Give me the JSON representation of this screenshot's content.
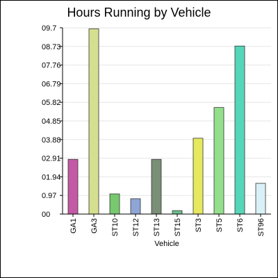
{
  "chart_data": {
    "type": "bar",
    "title": "Hours Running by Vehicle",
    "xlabel": "Vehicle",
    "ylabel": "",
    "categories": [
      "GA1",
      "GA3",
      "ST10",
      "ST12",
      "ST13",
      "ST15",
      "ST3",
      "ST5",
      "ST6",
      "ST96"
    ],
    "values": [
      2.85,
      9.65,
      1.05,
      0.8,
      2.85,
      0.18,
      3.95,
      5.55,
      8.75,
      1.6
    ],
    "colors": [
      "#c45aa6",
      "#d6df8f",
      "#78c86f",
      "#8fa5d6",
      "#7b8e78",
      "#6cbf8c",
      "#e6e85e",
      "#93df8c",
      "#55d6b8",
      "#d9f1f6"
    ],
    "ylim": [
      0,
      9.7
    ],
    "yticks": [
      "00",
      "0.97",
      "01.94",
      "02.91",
      "03.88",
      "04.85",
      "05.82",
      "06.79",
      "07.76",
      "08.73",
      "09.7"
    ],
    "grid": true,
    "legend": "none"
  }
}
